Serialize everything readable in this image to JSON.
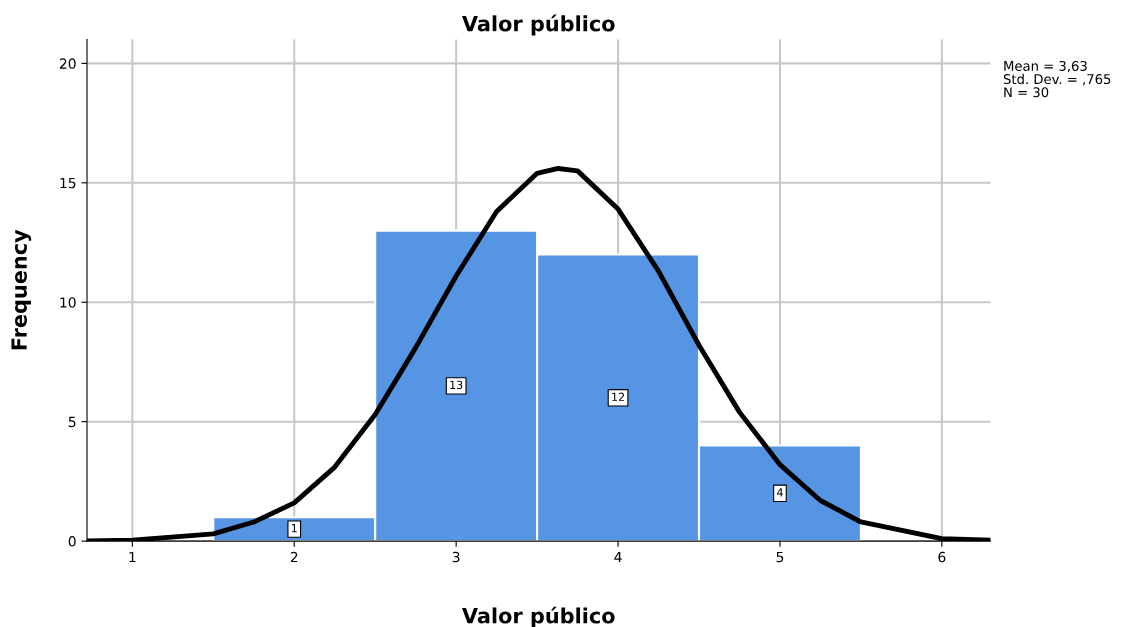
{
  "chart_data": {
    "type": "histogram",
    "title": "Valor público",
    "xlabel": "Valor público",
    "ylabel": "Frequency",
    "bins": [
      1.5,
      2.5,
      3.5,
      4.5,
      5.5
    ],
    "values": [
      1,
      13,
      12,
      4
    ],
    "color": "#5595e3",
    "value_labels": [
      "1",
      "13",
      "12",
      "4"
    ],
    "series": [
      {
        "type": "line",
        "color": "#000000",
        "x": [
          0.72,
          1,
          1.5,
          1.75,
          2,
          2.25,
          2.5,
          2.75,
          3,
          3.25,
          3.5,
          3.63,
          3.75,
          4,
          4.25,
          4.5,
          4.75,
          5,
          5.25,
          5.5,
          6,
          6.3
        ],
        "values": [
          0.01,
          0.04,
          0.3,
          0.8,
          1.6,
          3.1,
          5.3,
          8.1,
          11.1,
          13.8,
          15.4,
          15.6,
          15.5,
          13.9,
          11.3,
          8.2,
          5.4,
          3.2,
          1.7,
          0.8,
          0.1,
          0.04
        ]
      }
    ],
    "xlim": [
      0.72,
      6.3
    ],
    "xticks": [
      1,
      2,
      3,
      4,
      5,
      6
    ],
    "ylim": [
      0,
      21
    ],
    "yticks": [
      0,
      5,
      10,
      15,
      20
    ],
    "grid": true,
    "annotations": [
      "Mean = 3,63",
      "Std. Dev. = ,765",
      "N = 30"
    ]
  }
}
